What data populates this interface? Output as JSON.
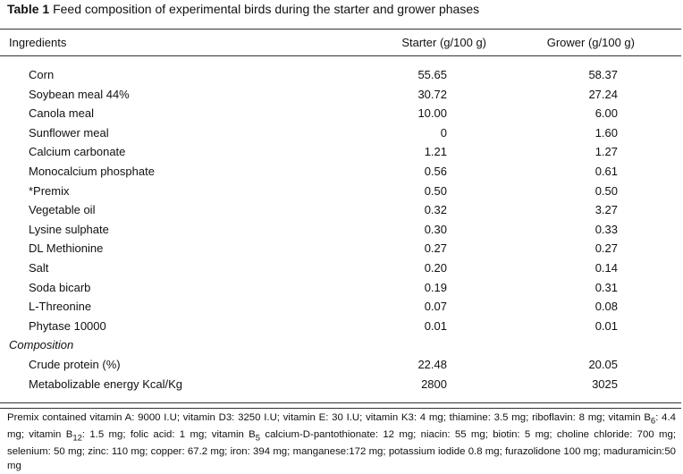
{
  "caption": {
    "label": "Table 1",
    "text": "Feed composition of experimental birds during the starter and grower phases"
  },
  "headers": {
    "ingredients": "Ingredients",
    "starter": "Starter (g/100 g)",
    "grower": "Grower (g/100 g)"
  },
  "rows": [
    {
      "name": "Corn",
      "starter": "55.65",
      "grower": "58.37"
    },
    {
      "name": "Soybean meal 44%",
      "starter": "30.72",
      "grower": "27.24"
    },
    {
      "name": "Canola meal",
      "starter": "10.00",
      "grower": "6.00"
    },
    {
      "name": "Sunflower meal",
      "starter": "0",
      "grower": "1.60"
    },
    {
      "name": "Calcium carbonate",
      "starter": "1.21",
      "grower": "1.27"
    },
    {
      "name": "Monocalcium phosphate",
      "starter": "0.56",
      "grower": "0.61"
    },
    {
      "name": "*Premix",
      "starter": "0.50",
      "grower": "0.50"
    },
    {
      "name": "Vegetable oil",
      "starter": "0.32",
      "grower": "3.27"
    },
    {
      "name": "Lysine sulphate",
      "starter": "0.30",
      "grower": "0.33"
    },
    {
      "name": "DL Methionine",
      "starter": "0.27",
      "grower": "0.27"
    },
    {
      "name": "Salt",
      "starter": "0.20",
      "grower": "0.14"
    },
    {
      "name": "Soda bicarb",
      "starter": "0.19",
      "grower": "0.31"
    },
    {
      "name": "L-Threonine",
      "starter": "0.07",
      "grower": "0.08"
    },
    {
      "name": "Phytase 10000",
      "starter": "0.01",
      "grower": "0.01"
    },
    {
      "name": "Composition",
      "starter": "",
      "grower": "",
      "section": true
    },
    {
      "name": "Crude protein (%)",
      "starter": "22.48",
      "grower": "20.05"
    },
    {
      "name": "Metabolizable energy Kcal/Kg",
      "starter": "2800",
      "grower": "3025"
    }
  ],
  "footnote": {
    "line1": "Premix contained vitamin A: 9000 I.U; vitamin D3: 3250 I.U; vitamin E: 30 I.U; vitamin K3: 4  mg; thiamine: 3.5 mg;",
    "line2_a": "riboflavin: 8 mg; vitamin B",
    "line2_sub1": "6",
    "line2_b": ": 4.4 mg; vitamin B",
    "line2_sub2": "12",
    "line2_c": ": 1.5 mg; folic acid: 1 mg; vitamin B",
    "line2_sub3": "5",
    "line2_d": " calcium-D-pantothionate: 12 mg;",
    "line3": "niacin: 55 mg; biotin:  5 mg; choline chloride: 700 mg; selenium: 50 mg; zinc: 110 mg; copper: 67.2 mg; iron: 394 mg;",
    "line4": "manganese:172 mg; potassium iodide 0.8 mg; furazolidone 100 mg; maduramicin:50 mg"
  }
}
